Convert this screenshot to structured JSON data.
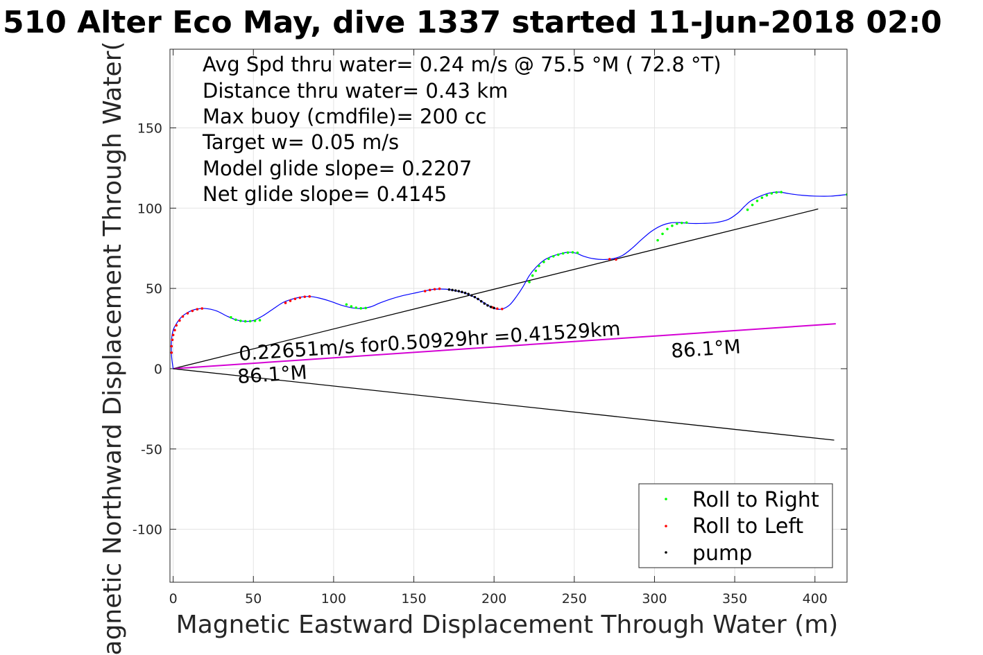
{
  "chart_data": {
    "type": "scatter",
    "title": "510 Alter Eco May, dive 1337 started 11-Jun-2018 02:0",
    "xlabel": "Magnetic Eastward Displacement Through Water (m)",
    "ylabel": "Magnetic Northward Displacement Through Water(",
    "xlim": [
      -2,
      420
    ],
    "ylim": [
      -133,
      199
    ],
    "xticks": [
      0,
      50,
      100,
      150,
      200,
      250,
      300,
      350,
      400
    ],
    "yticks": [
      -100,
      -50,
      0,
      50,
      100,
      150
    ],
    "grid": true,
    "stats": [
      "Avg Spd thru water=  0.24 m/s @  75.5 °M ( 72.8 °T)",
      "Distance thru water=  0.43 km",
      "Max buoy (cmdfile)= 200 cc",
      "Target w= 0.05 m/s",
      "Model glide slope= 0.2207",
      "Net glide slope= 0.4145"
    ],
    "annotations": {
      "speed_label": "0.22651m/s for0.50929hr =0.41529km",
      "heading_label_start": "86.1°M",
      "heading_label_end": "86.1°M"
    },
    "track": {
      "name": "Track",
      "color": "#0000ff",
      "x": [
        0,
        -1,
        -1,
        0,
        2,
        5,
        9,
        14,
        20,
        27,
        33,
        39,
        45,
        50,
        56,
        62,
        68,
        73,
        79,
        85,
        91,
        98,
        105,
        111,
        117,
        123,
        129,
        136,
        143,
        150,
        157,
        163,
        170,
        176,
        182,
        188,
        193,
        198,
        202,
        206,
        210,
        214,
        218,
        222,
        226,
        231,
        236,
        241,
        246,
        251,
        256,
        262,
        268,
        274,
        280,
        286,
        292,
        298,
        304,
        310,
        316,
        322,
        330,
        338,
        346,
        352,
        356,
        360,
        366,
        372,
        378,
        384,
        392,
        400,
        410,
        420
      ],
      "y": [
        0,
        8,
        18,
        24,
        28,
        32,
        35,
        37,
        37.5,
        36,
        33,
        30.5,
        29.5,
        30,
        33,
        37,
        41,
        43,
        44.5,
        45,
        44,
        42,
        39.5,
        38,
        37.5,
        38.5,
        41,
        43.5,
        45.5,
        47,
        48.5,
        49.5,
        49.5,
        48.5,
        47,
        44.5,
        41.5,
        38.5,
        37,
        37.5,
        40,
        45,
        51,
        58,
        63,
        67.5,
        70,
        71.5,
        72.5,
        72,
        70,
        68.5,
        68,
        68.5,
        70.5,
        75,
        80.5,
        85.5,
        89,
        90.8,
        91,
        90.5,
        90.5,
        91,
        93,
        97,
        101,
        104.5,
        107.5,
        109.5,
        110,
        109,
        108,
        107.5,
        107.5,
        108.5
      ]
    },
    "series": [
      {
        "name": "Roll to Right",
        "color": "#00ff00",
        "x": [
          36,
          39,
          42,
          45,
          48,
          51,
          54,
          108,
          111,
          114,
          117,
          120,
          222,
          224,
          226,
          228,
          231,
          234,
          237,
          240,
          243,
          246,
          249,
          252,
          302,
          305,
          308,
          311,
          314,
          317,
          320,
          358,
          361,
          364,
          367,
          370,
          373,
          376,
          379,
          420
        ],
        "y": [
          32,
          30.5,
          29.8,
          29.5,
          29.6,
          29.8,
          30.2,
          40,
          38.8,
          38,
          37.6,
          37.8,
          54,
          58,
          61,
          64,
          66.5,
          68.5,
          70,
          71,
          71.8,
          72.3,
          72.5,
          72.2,
          80,
          84,
          87,
          89,
          90.3,
          90.8,
          91,
          99,
          102,
          104.5,
          106.5,
          108,
          109.2,
          109.8,
          110,
          108.5
        ]
      },
      {
        "name": "Roll to Left",
        "color": "#ff0000",
        "x": [
          -1,
          -1,
          -0.5,
          0,
          1,
          2,
          4,
          6,
          9,
          12,
          15,
          18,
          70,
          73,
          76,
          79,
          82,
          85,
          157,
          160,
          163,
          166,
          199,
          202,
          205,
          272,
          276
        ],
        "y": [
          10,
          14,
          18,
          21,
          24,
          27,
          30,
          32.5,
          34.5,
          36,
          37,
          37.5,
          41,
          42.3,
          43.5,
          44.2,
          44.8,
          45,
          48.3,
          49,
          49.5,
          49.8,
          38.2,
          37.4,
          37.2,
          68.2,
          68
        ]
      },
      {
        "name": "pump",
        "color": "#000000",
        "x": [
          172,
          174,
          176,
          178,
          180,
          182,
          184,
          186,
          188,
          190,
          192,
          194,
          196,
          198,
          200
        ],
        "y": [
          49.3,
          49,
          48.7,
          48.3,
          47.8,
          47.2,
          46.5,
          45.6,
          44.6,
          43.4,
          42,
          40.6,
          39.4,
          38.5,
          37.8
        ]
      }
    ],
    "reference_lines": [
      {
        "name": "model-glide-line",
        "color": "#000000",
        "x": [
          0,
          402
        ],
        "y": [
          0,
          99.5
        ]
      },
      {
        "name": "depth-avg-current-line",
        "color": "#d400d4",
        "x": [
          0,
          413
        ],
        "y": [
          0,
          28
        ]
      },
      {
        "name": "heading-line",
        "color": "#000000",
        "x": [
          0,
          412
        ],
        "y": [
          0,
          -44.5
        ]
      }
    ],
    "legend": {
      "placement": "bottom-right",
      "entries": [
        "Roll to Right",
        "Roll to Left",
        "pump"
      ]
    }
  }
}
